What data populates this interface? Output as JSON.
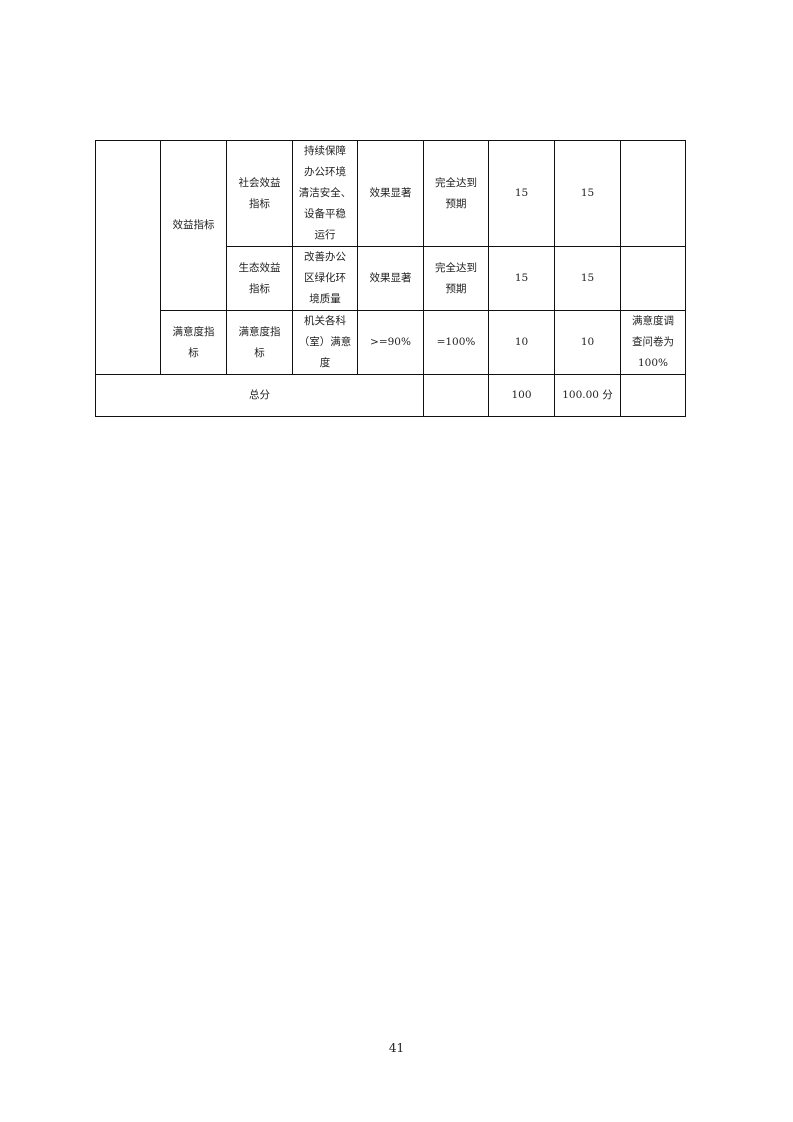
{
  "table": {
    "rows": [
      {
        "c1": "效益指标",
        "c2": "社会效益\n指标",
        "c3": "持续保障\n办公环境\n清洁安全、\n设备平稳\n运行",
        "c4": "效果显著",
        "c5": "完全达到\n预期",
        "c6": "15",
        "c7": "15",
        "c8": ""
      },
      {
        "c2": "生态效益\n指标",
        "c3": "改善办公\n区绿化环\n境质量",
        "c4": "效果显著",
        "c5": "完全达到\n预期",
        "c6": "15",
        "c7": "15",
        "c8": ""
      },
      {
        "c1": "满意度指\n标",
        "c2": "满意度指\n标",
        "c3": "机关各科\n（室）满意\n度",
        "c4": ">=90%",
        "c5": "=100%",
        "c6": "10",
        "c7": "10",
        "c8": "满意度调\n查问卷为\n100%"
      }
    ],
    "total": {
      "label": "总分",
      "target": "",
      "weight": "100",
      "score": "100.00 分",
      "note": ""
    }
  },
  "page_number": "41"
}
